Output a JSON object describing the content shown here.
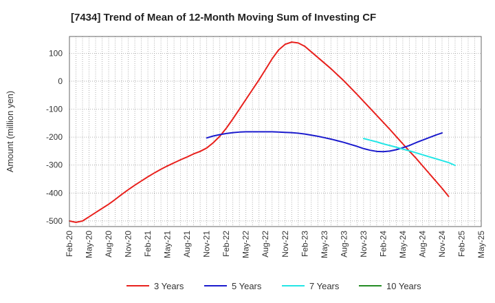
{
  "chart_data": {
    "type": "line",
    "title": "[7434]  Trend of Mean of 12-Month Moving Sum of Investing CF",
    "xlabel": "",
    "ylabel": "Amount (million yen)",
    "ylim": [
      -520,
      160
    ],
    "yticks": [
      100,
      0,
      -100,
      -200,
      -300,
      -400,
      -500
    ],
    "grid": true,
    "legend_position": "bottom",
    "x_start": "Feb-20",
    "x_end": "May-25",
    "x_tick_labels": [
      "Feb-20",
      "May-20",
      "Aug-20",
      "Nov-20",
      "Feb-21",
      "May-21",
      "Aug-21",
      "Nov-21",
      "Feb-22",
      "May-22",
      "Aug-22",
      "Nov-22",
      "Feb-23",
      "May-23",
      "Aug-23",
      "Nov-23",
      "Feb-24",
      "May-24",
      "Aug-24",
      "Nov-24",
      "Feb-25",
      "May-25"
    ],
    "series": [
      {
        "name": "3 Years",
        "color": "#e8201c",
        "start_index": 0,
        "values": [
          -500,
          -505,
          -500,
          -485,
          -470,
          -455,
          -440,
          -423,
          -405,
          -388,
          -372,
          -357,
          -342,
          -328,
          -315,
          -303,
          -292,
          -281,
          -271,
          -260,
          -251,
          -239,
          -220,
          -197,
          -168,
          -135,
          -100,
          -65,
          -30,
          5,
          42,
          80,
          112,
          132,
          140,
          137,
          125,
          105,
          85,
          65,
          45,
          23,
          1,
          -23,
          -47,
          -72,
          -97,
          -122,
          -147,
          -172,
          -198,
          -224,
          -250,
          -275,
          -302,
          -329,
          -356,
          -383,
          -412
        ]
      },
      {
        "name": "5 Years",
        "color": "#1a1acd",
        "start_index": 21,
        "values": [
          -203,
          -196,
          -191,
          -187,
          -184,
          -182,
          -181,
          -181,
          -181,
          -181,
          -181,
          -182,
          -183,
          -184,
          -186,
          -189,
          -193,
          -197,
          -202,
          -207,
          -213,
          -219,
          -226,
          -233,
          -241,
          -247,
          -251,
          -252,
          -250,
          -245,
          -238,
          -230,
          -220,
          -211,
          -202,
          -193,
          -185
        ]
      },
      {
        "name": "7 Years",
        "color": "#22e5e5",
        "start_index": 45,
        "values": [
          -205,
          -211,
          -217,
          -224,
          -230,
          -236,
          -243,
          -249,
          -256,
          -263,
          -270,
          -277,
          -284,
          -291,
          -301
        ]
      },
      {
        "name": "10 Years",
        "color": "#228b22",
        "start_index": 0,
        "values": []
      }
    ]
  }
}
